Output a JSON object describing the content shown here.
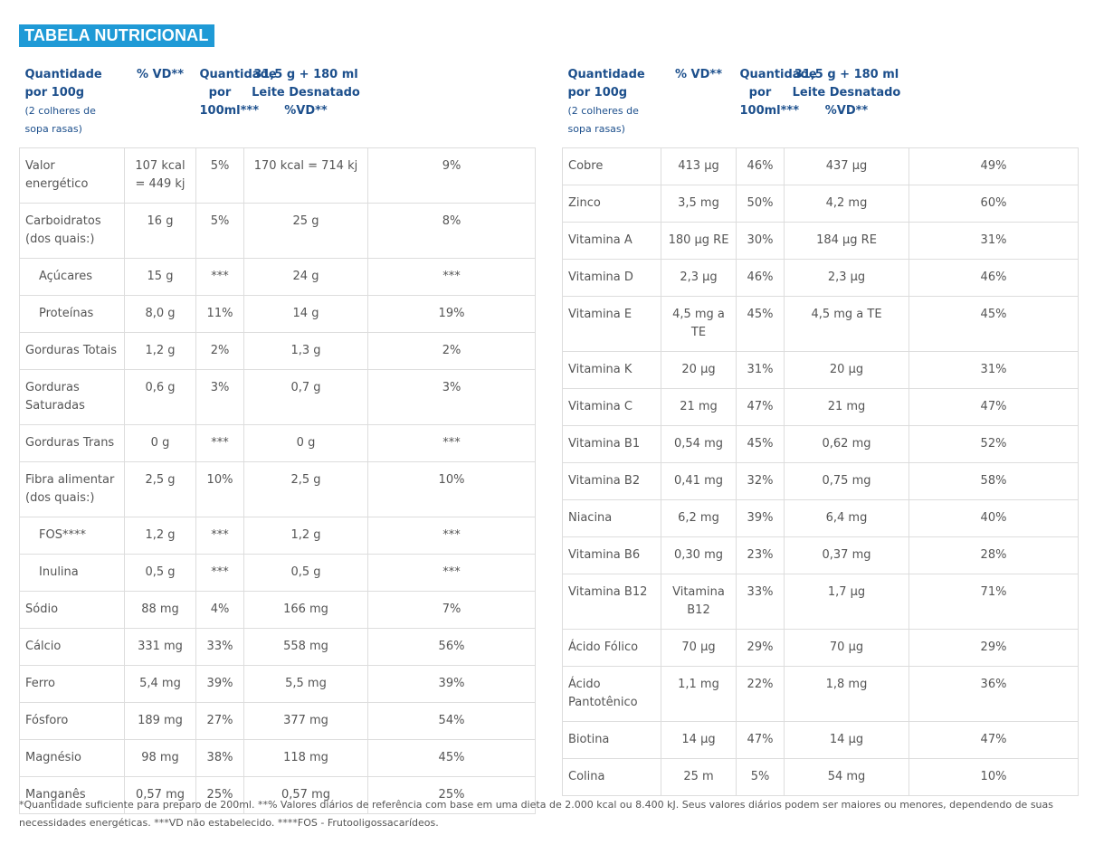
{
  "title": "TABELA NUTRICIONAL",
  "colors": {
    "title_bg": "#1f9ad6",
    "header_text": "#1c4f8c",
    "border": "#dddddd",
    "body_text": "#555555"
  },
  "header": {
    "col1": "Quantidade por 100g",
    "col1_sub": "(2 colheres de sopa rasas)",
    "col2": "% VD**",
    "col3": "Quantidade por 100ml***",
    "col4": "31,5 g + 180 ml Leite Desnatado %VD**"
  },
  "left_rows": [
    {
      "name": "Valor energético",
      "qty": "107 kcal = 449 kj",
      "vd": "5%",
      "qty100": "170 kcal = 714 kj",
      "vd_leite": "9%"
    },
    {
      "name": "Carboidratos (dos quais:)",
      "qty": "16 g",
      "vd": "5%",
      "qty100": "25 g",
      "vd_leite": "8%"
    },
    {
      "name": "Açúcares",
      "qty": "15 g",
      "vd": "***",
      "qty100": "24 g",
      "vd_leite": "***",
      "indent": true
    },
    {
      "name": "Proteínas",
      "qty": "8,0 g",
      "vd": "11%",
      "qty100": "14 g",
      "vd_leite": "19%",
      "indent": true
    },
    {
      "name": "Gorduras Totais",
      "qty": "1,2 g",
      "vd": "2%",
      "qty100": "1,3 g",
      "vd_leite": "2%"
    },
    {
      "name": "Gorduras Saturadas",
      "qty": "0,6 g",
      "vd": "3%",
      "qty100": "0,7 g",
      "vd_leite": "3%"
    },
    {
      "name": "Gorduras Trans",
      "qty": "0 g",
      "vd": "***",
      "qty100": "0 g",
      "vd_leite": "***"
    },
    {
      "name": "Fibra alimentar (dos quais:)",
      "qty": "2,5 g",
      "vd": "10%",
      "qty100": "2,5 g",
      "vd_leite": "10%"
    },
    {
      "name": "FOS****",
      "qty": "1,2 g",
      "vd": "***",
      "qty100": "1,2 g",
      "vd_leite": "***",
      "indent": true
    },
    {
      "name": "Inulina",
      "qty": "0,5 g",
      "vd": "***",
      "qty100": "0,5 g",
      "vd_leite": "***",
      "indent": true
    },
    {
      "name": "Sódio",
      "qty": "88 mg",
      "vd": "4%",
      "qty100": "166 mg",
      "vd_leite": "7%"
    },
    {
      "name": "Cálcio",
      "qty": "331 mg",
      "vd": "33%",
      "qty100": "558 mg",
      "vd_leite": "56%"
    },
    {
      "name": "Ferro",
      "qty": "5,4 mg",
      "vd": "39%",
      "qty100": "5,5 mg",
      "vd_leite": "39%"
    },
    {
      "name": "Fósforo",
      "qty": "189 mg",
      "vd": "27%",
      "qty100": "377 mg",
      "vd_leite": "54%"
    },
    {
      "name": "Magnésio",
      "qty": "98 mg",
      "vd": "38%",
      "qty100": "118 mg",
      "vd_leite": "45%"
    },
    {
      "name": "Manganês",
      "qty": "0,57 mg",
      "vd": "25%",
      "qty100": "0,57 mg",
      "vd_leite": "25%"
    }
  ],
  "right_rows": [
    {
      "name": "Cobre",
      "qty": "413 µg",
      "vd": "46%",
      "qty100": "437 µg",
      "vd_leite": "49%"
    },
    {
      "name": "Zinco",
      "qty": "3,5 mg",
      "vd": "50%",
      "qty100": "4,2 mg",
      "vd_leite": "60%"
    },
    {
      "name": "Vitamina A",
      "qty": "180 µg RE",
      "vd": "30%",
      "qty100": "184 µg RE",
      "vd_leite": "31%"
    },
    {
      "name": "Vitamina D",
      "qty": "2,3 µg",
      "vd": "46%",
      "qty100": "2,3 µg",
      "vd_leite": "46%"
    },
    {
      "name": "Vitamina E",
      "qty": "4,5 mg a TE",
      "vd": "45%",
      "qty100": "4,5 mg a TE",
      "vd_leite": "45%"
    },
    {
      "name": "Vitamina K",
      "qty": "20 µg",
      "vd": "31%",
      "qty100": "20 µg",
      "vd_leite": "31%"
    },
    {
      "name": "Vitamina C",
      "qty": "21 mg",
      "vd": "47%",
      "qty100": "21 mg",
      "vd_leite": "47%"
    },
    {
      "name": "Vitamina B1",
      "qty": "0,54 mg",
      "vd": "45%",
      "qty100": "0,62 mg",
      "vd_leite": "52%"
    },
    {
      "name": "Vitamina B2",
      "qty": "0,41 mg",
      "vd": "32%",
      "qty100": "0,75 mg",
      "vd_leite": "58%"
    },
    {
      "name": "Niacina",
      "qty": "6,2 mg",
      "vd": "39%",
      "qty100": "6,4 mg",
      "vd_leite": "40%"
    },
    {
      "name": "Vitamina B6",
      "qty": "0,30 mg",
      "vd": "23%",
      "qty100": "0,37 mg",
      "vd_leite": "28%"
    },
    {
      "name": "Vitamina B12",
      "qty": "Vitamina B12",
      "vd": "33%",
      "qty100": "1,7 µg",
      "vd_leite": "71%"
    },
    {
      "name": "Ácido Fólico",
      "qty": "70 µg",
      "vd": "29%",
      "qty100": "70 µg",
      "vd_leite": "29%"
    },
    {
      "name": "Ácido Pantotênico",
      "qty": "1,1 mg",
      "vd": "22%",
      "qty100": "1,8 mg",
      "vd_leite": "36%"
    },
    {
      "name": "Biotina",
      "qty": "14 µg",
      "vd": "47%",
      "qty100": "14 µg",
      "vd_leite": "47%"
    },
    {
      "name": "Colina",
      "qty": "25 m",
      "vd": "5%",
      "qty100": "54 mg",
      "vd_leite": "10%"
    }
  ],
  "footnote": "*Quantidade suficiente para preparo de 200ml. **% Valores diários de referência com base em uma dieta de 2.000 kcal ou 8.400 kJ. Seus valores diários podem ser maiores ou menores, dependendo de suas necessidades energéticas. ***VD não estabelecido. ****FOS - Frutooligossacarídeos."
}
